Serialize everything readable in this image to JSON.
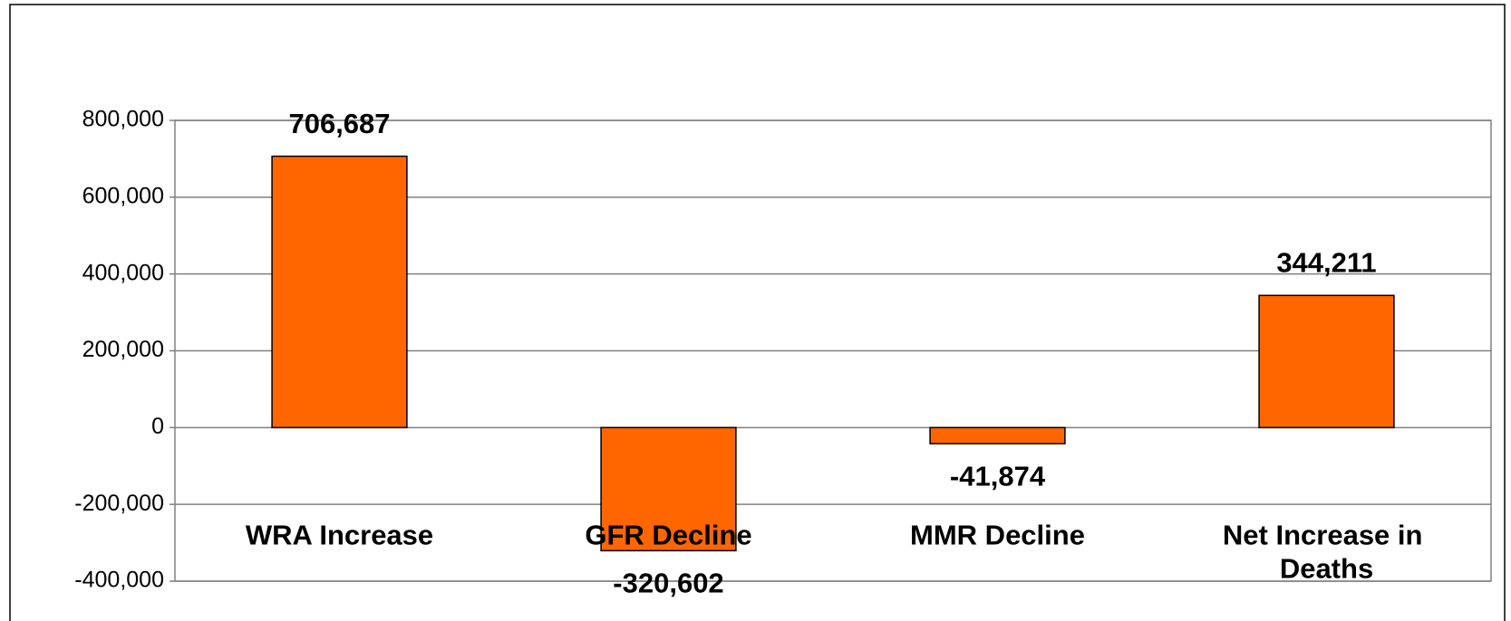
{
  "chart_data": {
    "type": "bar",
    "categories": [
      "WRA Increase",
      "GFR Decline",
      "MMR Decline",
      "Net Increase in Deaths"
    ],
    "values": [
      706687,
      -320602,
      -41874,
      344211
    ],
    "value_labels": [
      "706,687",
      "-320,602",
      "-41,874",
      "344,211"
    ],
    "color": "#ff6600",
    "ylim": [
      -400000,
      800000
    ],
    "yticks": [
      {
        "value": -400000,
        "label": "-400,000"
      },
      {
        "value": -200000,
        "label": "-200,000"
      },
      0,
      {
        "value": 200000,
        "label": "200,000"
      },
      {
        "value": 400000,
        "label": "400,000"
      },
      {
        "value": 600000,
        "label": "600,000"
      },
      {
        "value": 800000,
        "label": "800,000"
      }
    ],
    "grid": true
  }
}
